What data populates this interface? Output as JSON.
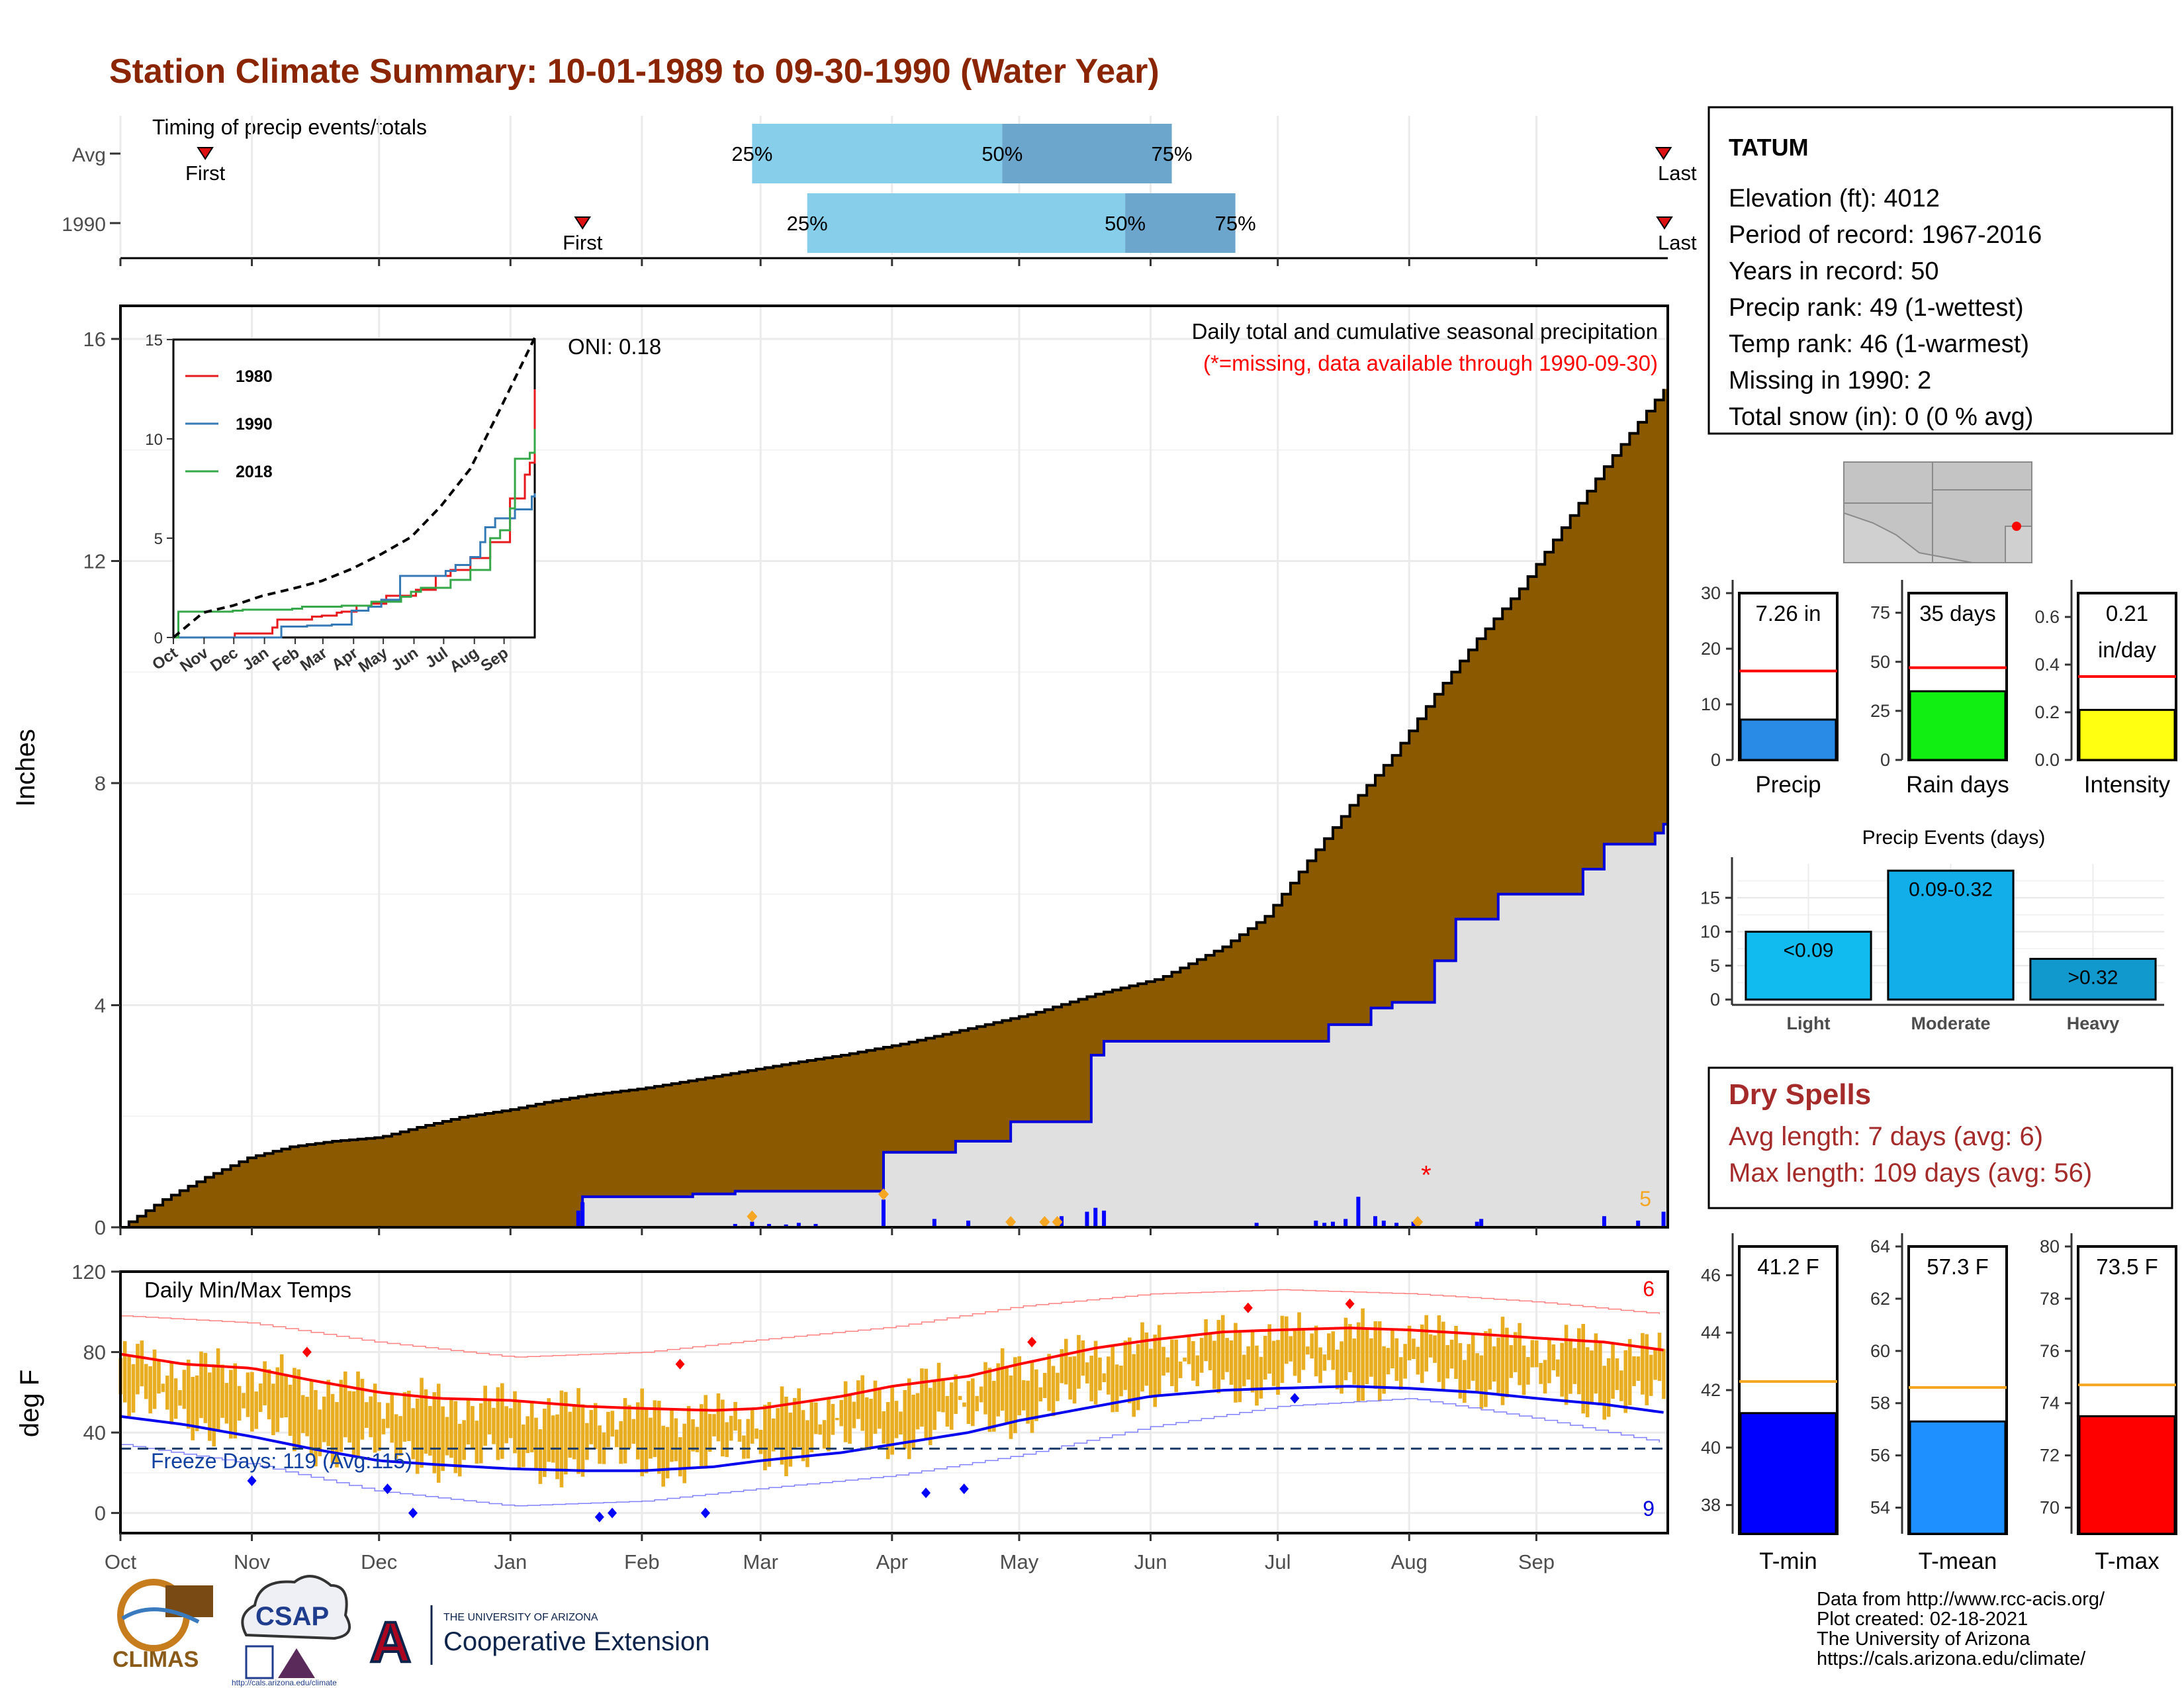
{
  "title": "Station Climate Summary: 10-01-1989 to 09-30-1990 (Water Year)",
  "months": [
    "Oct",
    "Nov",
    "Dec",
    "Jan",
    "Feb",
    "Mar",
    "Apr",
    "May",
    "Jun",
    "Jul",
    "Aug",
    "Sep"
  ],
  "timing": {
    "title": "Timing of precip events/totals",
    "rows": [
      {
        "label": "Avg",
        "first_day": 20,
        "last_day": 364,
        "p25": 149,
        "p50": 208,
        "p75": 248,
        "first_label": "First",
        "last_label": "Last",
        "p25_label": "25%",
        "p50_label": "50%",
        "p75_label": "75%"
      },
      {
        "label": "1990",
        "first_day": 109,
        "last_day": 376,
        "p25": 162,
        "p50": 237,
        "p75": 263,
        "first_label": "First",
        "last_label": "Last",
        "p25_label": "25%",
        "p50_label": "50%",
        "p75_label": "75%"
      }
    ]
  },
  "station": {
    "name": "TATUM",
    "lines": [
      "Elevation (ft): 4012",
      "Period of record: 1967-2016",
      "Years in record: 50",
      "Precip rank: 49 (1-wettest)",
      "Temp rank: 46 (1-warmest)",
      "Missing in 1990: 2",
      "Total snow (in): 0 (0 % avg)"
    ]
  },
  "chart_data": [
    {
      "type": "area",
      "name": "precip-main",
      "ylabel": "Inches",
      "ylim": [
        0,
        16
      ],
      "yticks": [
        0,
        4,
        8,
        12,
        16
      ],
      "annotation": "Daily total and cumulative seasonal precipitation",
      "missing_note": "(*=missing, data available through 1990-09-30)",
      "oni_label": "ONI: 0.18",
      "count_label": "5",
      "avg_cumulative": {
        "day": [
          0,
          10,
          20,
          30,
          40,
          50,
          61,
          70,
          80,
          92,
          100,
          110,
          123,
          135,
          150,
          160,
          170,
          184,
          200,
          215,
          230,
          245,
          260,
          270,
          280,
          290,
          300,
          310,
          320,
          330,
          340,
          350,
          364
        ],
        "inches": [
          0,
          0.5,
          0.9,
          1.25,
          1.45,
          1.55,
          1.62,
          1.8,
          1.98,
          2.12,
          2.25,
          2.38,
          2.5,
          2.65,
          2.85,
          2.98,
          3.1,
          3.3,
          3.58,
          3.85,
          4.2,
          4.48,
          5.05,
          5.6,
          6.6,
          7.6,
          8.5,
          9.6,
          10.6,
          11.5,
          12.6,
          13.7,
          15.1
        ]
      },
      "obs_cumulative": {
        "day": [
          0,
          108,
          109,
          135,
          145,
          160,
          180,
          185,
          197,
          200,
          210,
          220,
          229,
          232,
          235,
          275,
          285,
          295,
          300,
          305,
          310,
          315,
          325,
          345,
          350,
          362,
          364
        ],
        "inches": [
          0,
          0,
          0.55,
          0.6,
          0.65,
          0.65,
          1.35,
          1.35,
          1.55,
          1.55,
          1.9,
          1.9,
          3.1,
          3.35,
          3.35,
          3.35,
          3.65,
          3.95,
          4.05,
          4.05,
          4.8,
          5.55,
          6.0,
          6.45,
          6.9,
          7.1,
          7.26
        ]
      },
      "daily_bars": {
        "day": [
          108,
          109,
          145,
          149,
          153,
          157,
          160,
          164,
          180,
          192,
          200,
          222,
          228,
          230,
          232,
          268,
          282,
          284,
          286,
          289,
          292,
          296,
          298,
          301,
          305,
          320,
          321,
          350,
          358,
          364
        ],
        "inches": [
          0.3,
          0.45,
          0.06,
          0.1,
          0.06,
          0.05,
          0.08,
          0.06,
          0.5,
          0.15,
          0.12,
          0.2,
          0.28,
          0.35,
          0.3,
          0.08,
          0.12,
          0.08,
          0.1,
          0.15,
          0.55,
          0.2,
          0.12,
          0.08,
          0.1,
          0.1,
          0.15,
          0.2,
          0.12,
          0.28
        ]
      },
      "extreme_markers": [
        149,
        180,
        210,
        218,
        221,
        306
      ],
      "missing_markers": [
        308
      ]
    },
    {
      "type": "line",
      "name": "inset-cumulative",
      "categories": [
        "Oct",
        "Nov",
        "Dec",
        "Jan",
        "Feb",
        "Mar",
        "Apr",
        "May",
        "Jun",
        "Jul",
        "Aug",
        "Sep"
      ],
      "ylim": [
        0,
        15
      ],
      "yticks": [
        0,
        5,
        10,
        15
      ],
      "series": [
        {
          "name": "1980",
          "color": "#e8191c",
          "day": [
            0,
            60,
            62,
            100,
            105,
            140,
            150,
            165,
            170,
            185,
            200,
            215,
            245,
            265,
            280,
            300,
            320,
            340,
            355,
            360,
            365
          ],
          "inches": [
            0,
            0,
            0.2,
            0.5,
            0.9,
            1.05,
            1.1,
            1.25,
            1.3,
            1.6,
            1.7,
            2.1,
            2.4,
            3.1,
            3.4,
            4.0,
            4.8,
            7.0,
            8.2,
            8.8,
            12.5
          ]
        },
        {
          "name": "1990",
          "color": "#357ab6",
          "day": [
            0,
            108,
            109,
            135,
            160,
            180,
            197,
            210,
            229,
            275,
            285,
            300,
            310,
            315,
            325,
            345,
            362,
            365
          ],
          "inches": [
            0,
            0,
            0.55,
            0.6,
            0.65,
            1.35,
            1.55,
            1.9,
            3.1,
            3.35,
            3.65,
            4.05,
            4.8,
            5.55,
            6.0,
            6.45,
            7.1,
            7.26
          ]
        },
        {
          "name": "2018",
          "color": "#36a84a",
          "day": [
            0,
            5,
            60,
            70,
            120,
            130,
            170,
            200,
            230,
            240,
            250,
            280,
            300,
            320,
            330,
            340,
            345,
            360,
            365
          ],
          "inches": [
            0,
            1.3,
            1.35,
            1.4,
            1.45,
            1.55,
            1.6,
            1.8,
            2.05,
            2.3,
            2.5,
            2.9,
            3.4,
            5.0,
            5.4,
            6.5,
            9.0,
            9.3,
            10.5
          ]
        },
        {
          "name": "Avg",
          "color": "#000000",
          "dashed": true,
          "day": [
            0,
            30,
            60,
            90,
            120,
            150,
            180,
            210,
            240,
            270,
            300,
            330,
            365
          ],
          "inches": [
            0,
            1.25,
            1.6,
            2.1,
            2.45,
            2.85,
            3.45,
            4.2,
            5.05,
            6.6,
            8.5,
            11.5,
            15.1
          ]
        }
      ]
    },
    {
      "type": "bar",
      "name": "precip-total",
      "label_top": "7.26 in",
      "value": 7.26,
      "avg": 16.0,
      "ylim": [
        0,
        30
      ],
      "yticks": [
        0,
        10,
        20,
        30
      ],
      "xlabel": "Precip",
      "color": "#2a8be6"
    },
    {
      "type": "bar",
      "name": "rain-days",
      "label_top": "35 days",
      "value": 35,
      "avg": 47,
      "ylim": [
        0,
        85
      ],
      "yticks": [
        0,
        25,
        50,
        75
      ],
      "xlabel": "Rain days",
      "color": "#11ee11"
    },
    {
      "type": "bar",
      "name": "intensity",
      "label_top": "0.21",
      "label_top2": "in/day",
      "value": 0.21,
      "avg": 0.35,
      "ylim": [
        0,
        0.7
      ],
      "yticks": [
        "0.0",
        "0.2",
        "0.4",
        "0.6"
      ],
      "xlabel": "Intensity",
      "color": "#ffff11"
    },
    {
      "type": "bar",
      "name": "precip-events",
      "title": "Precip Events (days)",
      "categories": [
        "Light",
        "Moderate",
        "Heavy"
      ],
      "values": [
        10,
        19,
        6
      ],
      "labels": [
        "<0.09",
        "0.09-0.32",
        ">0.32"
      ],
      "colors": [
        "#11bbef",
        "#11aeea",
        "#1198cc"
      ],
      "ylim": [
        0,
        20
      ],
      "yticks": [
        0,
        5,
        10,
        15
      ]
    },
    {
      "type": "bar",
      "name": "temperature",
      "title": "Daily Min/Max Temps",
      "ylabel": "deg F",
      "ylim": [
        -10,
        120
      ],
      "yticks": [
        0,
        40,
        80,
        120
      ],
      "freeze_label": "Freeze Days: 119 (Avg:115)",
      "freeze_line": 32,
      "hot_count": "6",
      "cold_count": "9",
      "avg_max": {
        "day": [
          0,
          15,
          31,
          45,
          61,
          75,
          92,
          110,
          123,
          140,
          151,
          170,
          182,
          200,
          212,
          230,
          243,
          260,
          273,
          290,
          304,
          320,
          334,
          350,
          364
        ],
        "temp": [
          79,
          74,
          72,
          66,
          60,
          57,
          56,
          53,
          52,
          51,
          52,
          58,
          63,
          68,
          74,
          82,
          86,
          90,
          91,
          92,
          91,
          89,
          87,
          85,
          81
        ]
      },
      "avg_min": {
        "day": [
          0,
          15,
          31,
          45,
          61,
          75,
          92,
          110,
          123,
          140,
          151,
          170,
          182,
          200,
          212,
          230,
          243,
          260,
          273,
          290,
          304,
          320,
          334,
          350,
          364
        ],
        "temp": [
          48,
          44,
          38,
          32,
          26,
          24,
          22,
          21,
          21,
          23,
          26,
          30,
          34,
          40,
          46,
          53,
          58,
          61,
          62,
          63,
          62,
          60,
          57,
          54,
          50
        ]
      },
      "record_max": {
        "day": [
          0,
          30,
          60,
          92,
          123,
          151,
          182,
          212,
          243,
          273,
          304,
          334,
          364
        ],
        "temp": [
          98,
          94,
          84,
          76,
          78,
          84,
          90,
          100,
          106,
          108,
          106,
          102,
          96
        ]
      },
      "record_min": {
        "day": [
          0,
          30,
          60,
          92,
          123,
          151,
          182,
          212,
          243,
          273,
          304,
          334,
          364
        ],
        "temp": [
          34,
          24,
          10,
          2,
          4,
          10,
          16,
          26,
          40,
          50,
          54,
          44,
          32
        ]
      }
    },
    {
      "type": "bar",
      "name": "tmin",
      "label_top": "41.2 F",
      "value": 41.2,
      "avg": 42.3,
      "ylim": [
        37,
        47
      ],
      "yticks": [
        38,
        40,
        42,
        44,
        46
      ],
      "xlabel": "T-min",
      "color": "#0000ff"
    },
    {
      "type": "bar",
      "name": "tmean",
      "label_top": "57.3 F",
      "value": 57.3,
      "avg": 58.6,
      "ylim": [
        53,
        64
      ],
      "yticks": [
        54,
        56,
        58,
        60,
        62,
        64
      ],
      "xlabel": "T-mean",
      "color": "#1e90ff"
    },
    {
      "type": "bar",
      "name": "tmax",
      "label_top": "73.5 F",
      "value": 73.5,
      "avg": 74.7,
      "ylim": [
        69,
        80
      ],
      "yticks": [
        70,
        72,
        74,
        76,
        78,
        80
      ],
      "xlabel": "T-max",
      "color": "#ff0000"
    }
  ],
  "dry_spells": {
    "title": "Dry Spells",
    "avg_line": "Avg length: 7 days (avg: 6)",
    "max_line": "Max length: 109 days (avg: 56)"
  },
  "footer": {
    "lines": [
      "Data from http://www.rcc-acis.org/",
      "Plot created: 02-18-2021",
      "The University of Arizona",
      "https://cals.arizona.edu/climate/"
    ],
    "climas": "CLIMAS",
    "csap": "CSAP",
    "csap_url": "http://cals.arizona.edu/climate",
    "ua_small": "THE UNIVERSITY OF ARIZONA",
    "ua_big": "Cooperative Extension",
    "ua_letter": "A"
  },
  "colors": {
    "title": "#8b2500",
    "brown": "#8b5a00",
    "gray_fill": "#e0e0e0",
    "blue_line": "#0000dd",
    "temp_bar": "#e8ad20",
    "light_blue": "#87ceeb",
    "mid_blue": "#6ca6cd",
    "dry_red": "#a52a2a",
    "orange_avg": "#f5a623"
  }
}
